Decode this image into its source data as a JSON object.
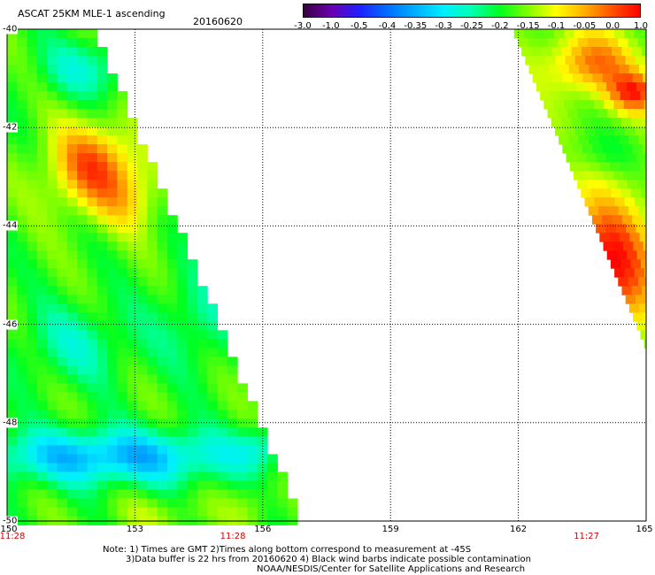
{
  "header": {
    "title": "ASCAT 25KM MLE-1 ascending",
    "date": "20160620"
  },
  "colorbar": {
    "labels": [
      "-3.0",
      "-1.0",
      "-0.5",
      "-0.4",
      "-0.35",
      "-0.3",
      "-0.25",
      "-0.2",
      "-0.15",
      "-0.1",
      "-0.05",
      "0.0",
      "1.0"
    ],
    "colors": [
      "#3a0040",
      "#6a00b0",
      "#2020ff",
      "#0070ff",
      "#00b0ff",
      "#00f0ff",
      "#00ffb0",
      "#00ff20",
      "#80ff00",
      "#ffff00",
      "#ffb000",
      "#ff5000",
      "#ff0000"
    ]
  },
  "axes": {
    "lon_ticks": [
      "150",
      "153",
      "156",
      "159",
      "162",
      "165"
    ],
    "lat_ticks": [
      "-40",
      "-42",
      "-44",
      "-46",
      "-48",
      "-50"
    ],
    "lon_range": [
      150,
      165
    ],
    "lat_range": [
      -50,
      -40
    ]
  },
  "pass_times": [
    {
      "label": "11:28",
      "lon": 150
    },
    {
      "label": "11:28",
      "lon": 155.3
    },
    {
      "label": "11:27",
      "lon": 163.6
    }
  ],
  "notes": [
    "Note: 1) Times are GMT 2)Times along bottom correspond to measurement at -45S",
    "3)Data buffer is 22 hrs from 20160620 4) Black wind barbs indicate possible contamination",
    "NOAA/NESDIS/Center for Satellite Applications and Research"
  ]
}
